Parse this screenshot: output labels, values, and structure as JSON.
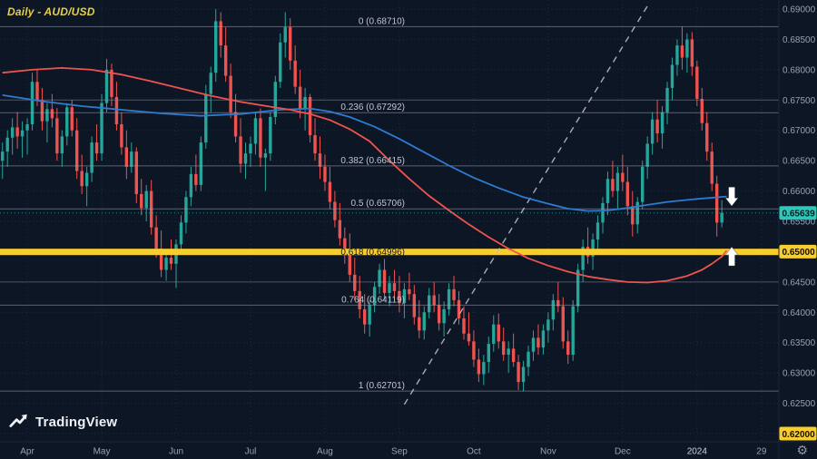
{
  "title": "Daily - AUD/USD",
  "logo": {
    "text": "TradingView"
  },
  "icons": {
    "settings_gear": "⚙"
  },
  "badges": {
    "last_price": {
      "label": "0.65639",
      "v": 0.65639,
      "color": "#2ec7ba",
      "text": "#07211d"
    },
    "yellow_upper": {
      "label": "0.65000",
      "v": 0.65,
      "color": "#f8ce2e",
      "text": "#141000"
    },
    "yellow_lower": {
      "label": "0.62000",
      "v": 0.62,
      "color": "#f8ce2e",
      "text": "#141000"
    }
  },
  "axis": {
    "price_ticks": [
      {
        "label": "0.69000",
        "v": 0.69
      },
      {
        "label": "0.68500",
        "v": 0.685
      },
      {
        "label": "0.68000",
        "v": 0.68
      },
      {
        "label": "0.67500",
        "v": 0.675
      },
      {
        "label": "0.67000",
        "v": 0.67
      },
      {
        "label": "0.66500",
        "v": 0.665
      },
      {
        "label": "0.66000",
        "v": 0.66
      },
      {
        "label": "0.65500",
        "v": 0.655
      },
      {
        "label": "0.65000",
        "v": 0.65
      },
      {
        "label": "0.64500",
        "v": 0.645
      },
      {
        "label": "0.64000",
        "v": 0.64
      },
      {
        "label": "0.63500",
        "v": 0.635
      },
      {
        "label": "0.63000",
        "v": 0.63
      },
      {
        "label": "0.62500",
        "v": 0.625
      },
      {
        "label": "0.62000",
        "v": 0.62
      }
    ],
    "time_ticks": [
      {
        "label": "Apr",
        "i": 5
      },
      {
        "label": "May",
        "i": 20
      },
      {
        "label": "Jun",
        "i": 35
      },
      {
        "label": "Jul",
        "i": 50
      },
      {
        "label": "Aug",
        "i": 65
      },
      {
        "label": "Sep",
        "i": 80
      },
      {
        "label": "Oct",
        "i": 95
      },
      {
        "label": "Nov",
        "i": 110
      },
      {
        "label": "Dec",
        "i": 125
      },
      {
        "label": "2024",
        "i": 140,
        "em": true
      },
      {
        "label": "29",
        "i": 153
      }
    ]
  },
  "chart_data": {
    "type": "candlestick",
    "title": "Daily - AUD/USD",
    "symbol": "AUD/USD",
    "timeframe": "Daily",
    "ylim": [
      0.62,
      0.69
    ],
    "price_step": 0.005,
    "slots": 157,
    "colors": {
      "up": "#26a69a",
      "down": "#ef5350",
      "bg": "#0d1624",
      "grid": "#1e2a3d",
      "fib": "#9fa3b1",
      "highlight": "#f8ce2e",
      "ma_blue": "#2e7bd2",
      "ma_red": "#ef5350"
    },
    "fib_levels": [
      {
        "label": "0 (0.68710)",
        "price": 0.6871
      },
      {
        "label": "0.236 (0.67292)",
        "price": 0.67292
      },
      {
        "label": "0.382 (0.66415)",
        "price": 0.66415
      },
      {
        "label": "0.5 (0.65706)",
        "price": 0.65706
      },
      {
        "label": "0.618 (0.64996)",
        "price": 0.64996,
        "hl": true
      },
      {
        "label": "0.764 (0.64119)",
        "price": 0.64119
      },
      {
        "label": "1 (0.62701)",
        "price": 0.62701
      }
    ],
    "hlines": [
      0.675,
      0.645
    ],
    "trendline": {
      "i1": 81,
      "p1": 0.6248,
      "i2": 130,
      "p2": 0.6905
    },
    "annotations": [
      {
        "type": "arrow-down",
        "i": 147,
        "price": 0.6575
      },
      {
        "type": "arrow-up",
        "i": 147,
        "price": 0.6508
      }
    ],
    "ma": [
      {
        "name": "ma-blue-line",
        "color": "#2e7bd2",
        "points": [
          [
            0,
            0.6758
          ],
          [
            8,
            0.6748
          ],
          [
            16,
            0.674
          ],
          [
            24,
            0.6734
          ],
          [
            32,
            0.6728
          ],
          [
            40,
            0.6724
          ],
          [
            48,
            0.6727
          ],
          [
            56,
            0.6734
          ],
          [
            62,
            0.6736
          ],
          [
            66,
            0.6731
          ],
          [
            70,
            0.6722
          ],
          [
            75,
            0.6706
          ],
          [
            80,
            0.6686
          ],
          [
            85,
            0.6664
          ],
          [
            90,
            0.6642
          ],
          [
            95,
            0.6622
          ],
          [
            100,
            0.6605
          ],
          [
            105,
            0.659
          ],
          [
            110,
            0.6579
          ],
          [
            114,
            0.6571
          ],
          [
            118,
            0.6567
          ],
          [
            122,
            0.6568
          ],
          [
            126,
            0.6572
          ],
          [
            130,
            0.6577
          ],
          [
            134,
            0.6582
          ],
          [
            140,
            0.6587
          ],
          [
            146,
            0.6591
          ]
        ]
      },
      {
        "name": "ma-red-line",
        "color": "#ef5350",
        "points": [
          [
            0,
            0.6795
          ],
          [
            6,
            0.68
          ],
          [
            12,
            0.6803
          ],
          [
            18,
            0.68
          ],
          [
            24,
            0.6792
          ],
          [
            30,
            0.6781
          ],
          [
            36,
            0.6769
          ],
          [
            42,
            0.6757
          ],
          [
            48,
            0.6747
          ],
          [
            54,
            0.6739
          ],
          [
            58,
            0.6734
          ],
          [
            62,
            0.6727
          ],
          [
            66,
            0.6717
          ],
          [
            70,
            0.6702
          ],
          [
            74,
            0.6682
          ],
          [
            78,
            0.665
          ],
          [
            82,
            0.662
          ],
          [
            86,
            0.6592
          ],
          [
            90,
            0.6568
          ],
          [
            94,
            0.6545
          ],
          [
            98,
            0.6524
          ],
          [
            102,
            0.6505
          ],
          [
            106,
            0.6489
          ],
          [
            110,
            0.6477
          ],
          [
            114,
            0.6467
          ],
          [
            118,
            0.6459
          ],
          [
            122,
            0.6454
          ],
          [
            126,
            0.645
          ],
          [
            130,
            0.6449
          ],
          [
            134,
            0.6452
          ],
          [
            138,
            0.646
          ],
          [
            141,
            0.647
          ],
          [
            143,
            0.648
          ],
          [
            145,
            0.6492
          ],
          [
            146,
            0.6502
          ]
        ]
      }
    ],
    "candles": [
      [
        0.665,
        0.668,
        0.662,
        0.6665
      ],
      [
        0.6665,
        0.67,
        0.664,
        0.6688
      ],
      [
        0.6688,
        0.672,
        0.666,
        0.6705
      ],
      [
        0.6705,
        0.673,
        0.667,
        0.669
      ],
      [
        0.669,
        0.6715,
        0.6655,
        0.67
      ],
      [
        0.67,
        0.672,
        0.666,
        0.671
      ],
      [
        0.671,
        0.6795,
        0.67,
        0.678
      ],
      [
        0.678,
        0.68,
        0.674,
        0.675
      ],
      [
        0.675,
        0.677,
        0.67,
        0.6715
      ],
      [
        0.6715,
        0.6745,
        0.668,
        0.6735
      ],
      [
        0.6735,
        0.676,
        0.6705,
        0.672
      ],
      [
        0.672,
        0.6737,
        0.665,
        0.6662
      ],
      [
        0.6662,
        0.67,
        0.664,
        0.669
      ],
      [
        0.669,
        0.6745,
        0.6675,
        0.6738
      ],
      [
        0.6738,
        0.675,
        0.669,
        0.67
      ],
      [
        0.67,
        0.672,
        0.662,
        0.6633
      ],
      [
        0.6633,
        0.666,
        0.6595,
        0.6608
      ],
      [
        0.6608,
        0.664,
        0.6575,
        0.663
      ],
      [
        0.663,
        0.669,
        0.6615,
        0.668
      ],
      [
        0.668,
        0.671,
        0.665,
        0.6662
      ],
      [
        0.6662,
        0.676,
        0.665,
        0.6745
      ],
      [
        0.6745,
        0.6818,
        0.673,
        0.68
      ],
      [
        0.68,
        0.681,
        0.674,
        0.6755
      ],
      [
        0.6755,
        0.678,
        0.67,
        0.671
      ],
      [
        0.671,
        0.673,
        0.666,
        0.6672
      ],
      [
        0.6672,
        0.67,
        0.662,
        0.664
      ],
      [
        0.664,
        0.668,
        0.663,
        0.6665
      ],
      [
        0.6665,
        0.6672,
        0.658,
        0.6595
      ],
      [
        0.6595,
        0.662,
        0.656,
        0.6572
      ],
      [
        0.6572,
        0.661,
        0.655,
        0.66
      ],
      [
        0.66,
        0.6618,
        0.6528,
        0.654
      ],
      [
        0.654,
        0.656,
        0.649,
        0.6505
      ],
      [
        0.6505,
        0.6535,
        0.6458,
        0.647
      ],
      [
        0.647,
        0.65,
        0.6452,
        0.649
      ],
      [
        0.649,
        0.652,
        0.647,
        0.648
      ],
      [
        0.648,
        0.652,
        0.644,
        0.6512
      ],
      [
        0.6512,
        0.656,
        0.65,
        0.6548
      ],
      [
        0.6548,
        0.66,
        0.653,
        0.659
      ],
      [
        0.659,
        0.664,
        0.6575,
        0.6628
      ],
      [
        0.6628,
        0.666,
        0.66,
        0.661
      ],
      [
        0.661,
        0.669,
        0.66,
        0.668
      ],
      [
        0.668,
        0.6775,
        0.667,
        0.676
      ],
      [
        0.676,
        0.6805,
        0.673,
        0.6795
      ],
      [
        0.6795,
        0.69,
        0.678,
        0.688
      ],
      [
        0.688,
        0.6895,
        0.682,
        0.684
      ],
      [
        0.684,
        0.687,
        0.678,
        0.679
      ],
      [
        0.679,
        0.681,
        0.672,
        0.673
      ],
      [
        0.673,
        0.676,
        0.668,
        0.669
      ],
      [
        0.669,
        0.672,
        0.663,
        0.6645
      ],
      [
        0.6645,
        0.668,
        0.662,
        0.6662
      ],
      [
        0.6662,
        0.669,
        0.664,
        0.6678
      ],
      [
        0.6678,
        0.673,
        0.666,
        0.672
      ],
      [
        0.672,
        0.6736,
        0.664,
        0.6655
      ],
      [
        0.6655,
        0.667,
        0.66,
        0.6662
      ],
      [
        0.6662,
        0.673,
        0.665,
        0.6722
      ],
      [
        0.6722,
        0.679,
        0.671,
        0.678
      ],
      [
        0.678,
        0.686,
        0.677,
        0.6845
      ],
      [
        0.6845,
        0.6895,
        0.682,
        0.687
      ],
      [
        0.687,
        0.6885,
        0.68,
        0.6815
      ],
      [
        0.6815,
        0.684,
        0.676,
        0.6772
      ],
      [
        0.6772,
        0.68,
        0.672,
        0.6735
      ],
      [
        0.6735,
        0.677,
        0.67,
        0.6755
      ],
      [
        0.6755,
        0.676,
        0.668,
        0.6692
      ],
      [
        0.6692,
        0.672,
        0.665,
        0.6662
      ],
      [
        0.6662,
        0.669,
        0.662,
        0.664
      ],
      [
        0.664,
        0.666,
        0.66,
        0.6615
      ],
      [
        0.6615,
        0.664,
        0.657,
        0.6582
      ],
      [
        0.6582,
        0.66,
        0.654,
        0.6552
      ],
      [
        0.6552,
        0.658,
        0.651,
        0.6522
      ],
      [
        0.6522,
        0.654,
        0.648,
        0.6495
      ],
      [
        0.6495,
        0.653,
        0.645,
        0.6462
      ],
      [
        0.6462,
        0.649,
        0.642,
        0.6435
      ],
      [
        0.6435,
        0.646,
        0.639,
        0.6405
      ],
      [
        0.6405,
        0.643,
        0.6365,
        0.638
      ],
      [
        0.638,
        0.642,
        0.636,
        0.6412
      ],
      [
        0.6412,
        0.645,
        0.64,
        0.6442
      ],
      [
        0.6442,
        0.648,
        0.643,
        0.647
      ],
      [
        0.647,
        0.6488,
        0.642,
        0.6432
      ],
      [
        0.6432,
        0.646,
        0.641,
        0.6448
      ],
      [
        0.6448,
        0.647,
        0.642,
        0.6435
      ],
      [
        0.6435,
        0.646,
        0.64,
        0.6415
      ],
      [
        0.6415,
        0.6448,
        0.639,
        0.6438
      ],
      [
        0.6438,
        0.6465,
        0.642,
        0.643
      ],
      [
        0.643,
        0.6445,
        0.638,
        0.6392
      ],
      [
        0.6392,
        0.642,
        0.6357,
        0.637
      ],
      [
        0.637,
        0.641,
        0.6355,
        0.64
      ],
      [
        0.64,
        0.644,
        0.639,
        0.6428
      ],
      [
        0.6428,
        0.645,
        0.64,
        0.6412
      ],
      [
        0.6412,
        0.643,
        0.637,
        0.6382
      ],
      [
        0.6382,
        0.6418,
        0.636,
        0.6405
      ],
      [
        0.6405,
        0.6448,
        0.6395,
        0.6438
      ],
      [
        0.6438,
        0.646,
        0.641,
        0.642
      ],
      [
        0.642,
        0.6435,
        0.638,
        0.639
      ],
      [
        0.639,
        0.641,
        0.6355,
        0.6365
      ],
      [
        0.6365,
        0.64,
        0.6345,
        0.6352
      ],
      [
        0.6352,
        0.637,
        0.631,
        0.6322
      ],
      [
        0.6322,
        0.634,
        0.6285,
        0.6298
      ],
      [
        0.6298,
        0.633,
        0.628,
        0.6318
      ],
      [
        0.6318,
        0.636,
        0.63,
        0.6348
      ],
      [
        0.6348,
        0.6395,
        0.6335,
        0.638
      ],
      [
        0.638,
        0.6398,
        0.634,
        0.6352
      ],
      [
        0.6352,
        0.6375,
        0.632,
        0.633
      ],
      [
        0.633,
        0.6352,
        0.63,
        0.634
      ],
      [
        0.634,
        0.6365,
        0.631,
        0.6318
      ],
      [
        0.6318,
        0.633,
        0.6272,
        0.6285
      ],
      [
        0.6285,
        0.632,
        0.627,
        0.631
      ],
      [
        0.631,
        0.6345,
        0.6295,
        0.6335
      ],
      [
        0.6335,
        0.637,
        0.632,
        0.6358
      ],
      [
        0.6358,
        0.638,
        0.633,
        0.6342
      ],
      [
        0.6342,
        0.638,
        0.633,
        0.637
      ],
      [
        0.637,
        0.64,
        0.635,
        0.6388
      ],
      [
        0.6388,
        0.643,
        0.637,
        0.642
      ],
      [
        0.642,
        0.645,
        0.64,
        0.641
      ],
      [
        0.641,
        0.6425,
        0.634,
        0.6352
      ],
      [
        0.6352,
        0.637,
        0.6315,
        0.633
      ],
      [
        0.633,
        0.642,
        0.632,
        0.641
      ],
      [
        0.641,
        0.648,
        0.64,
        0.647
      ],
      [
        0.647,
        0.652,
        0.645,
        0.6508
      ],
      [
        0.6508,
        0.654,
        0.648,
        0.6492
      ],
      [
        0.6492,
        0.653,
        0.647,
        0.652
      ],
      [
        0.652,
        0.656,
        0.65,
        0.6548
      ],
      [
        0.6548,
        0.659,
        0.653,
        0.658
      ],
      [
        0.658,
        0.6632,
        0.656,
        0.662
      ],
      [
        0.662,
        0.665,
        0.659,
        0.66
      ],
      [
        0.66,
        0.664,
        0.657,
        0.663
      ],
      [
        0.663,
        0.666,
        0.66,
        0.6615
      ],
      [
        0.6615,
        0.664,
        0.656,
        0.6575
      ],
      [
        0.6575,
        0.66,
        0.6525,
        0.6545
      ],
      [
        0.6545,
        0.659,
        0.653,
        0.6582
      ],
      [
        0.6582,
        0.665,
        0.657,
        0.664
      ],
      [
        0.664,
        0.669,
        0.662,
        0.6678
      ],
      [
        0.6678,
        0.673,
        0.666,
        0.6718
      ],
      [
        0.6718,
        0.675,
        0.668,
        0.6695
      ],
      [
        0.6695,
        0.674,
        0.667,
        0.673
      ],
      [
        0.673,
        0.678,
        0.671,
        0.677
      ],
      [
        0.677,
        0.682,
        0.675,
        0.6808
      ],
      [
        0.6808,
        0.685,
        0.679,
        0.684
      ],
      [
        0.684,
        0.6871,
        0.68,
        0.682
      ],
      [
        0.682,
        0.686,
        0.6795,
        0.685
      ],
      [
        0.685,
        0.6862,
        0.679,
        0.6805
      ],
      [
        0.6805,
        0.6815,
        0.674,
        0.6752
      ],
      [
        0.6752,
        0.677,
        0.67,
        0.6712
      ],
      [
        0.6712,
        0.673,
        0.665,
        0.6665
      ],
      [
        0.6665,
        0.668,
        0.66,
        0.6612
      ],
      [
        0.6612,
        0.6625,
        0.6525,
        0.6548
      ],
      [
        0.6548,
        0.6585,
        0.654,
        0.6564
      ]
    ]
  }
}
